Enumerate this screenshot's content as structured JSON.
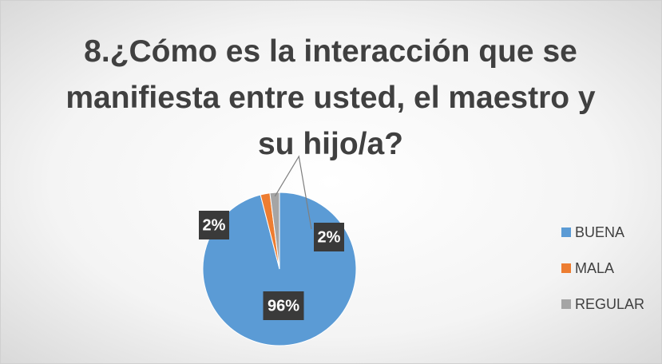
{
  "chart_data": {
    "type": "pie",
    "title": "8.¿Cómo es la interacción que se manifiesta entre usted, el maestro y su hijo/a?",
    "categories": [
      "BUENA",
      "MALA",
      "REGULAR"
    ],
    "values": [
      96,
      2,
      2
    ],
    "value_labels": [
      "96%",
      "2%",
      "2%"
    ],
    "colors": [
      "#5b9bd5",
      "#ed7d31",
      "#a5a5a5"
    ],
    "legend": "right"
  }
}
